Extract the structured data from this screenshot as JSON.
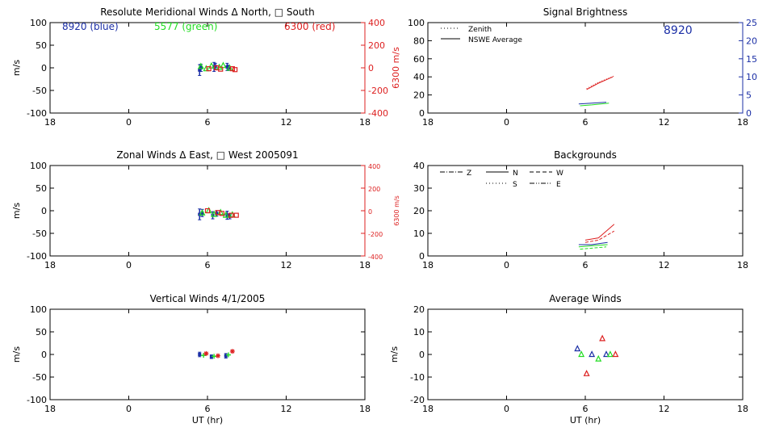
{
  "colors": {
    "blue": "#1b2fa6",
    "green": "#22dd22",
    "red": "#dd2020",
    "black": "#000000"
  },
  "chart_data": [
    {
      "id": "meridional",
      "type": "scatter",
      "title": "Resolute Meridional Winds Δ North, □ South",
      "xlabel": "",
      "ylabel": "m/s",
      "ylabel2": "6300 m/s",
      "xticks": [
        "18",
        "0",
        "6",
        "12",
        "18"
      ],
      "yticks": [
        "100",
        "50",
        "0",
        "-50",
        "-100"
      ],
      "y2ticks": [
        "400",
        "200",
        "0",
        "-200",
        "-400"
      ],
      "ylim": [
        -100,
        100
      ],
      "y2lim": [
        -400,
        400
      ],
      "annotations": [
        {
          "text": "8920 (blue)",
          "color": "blue"
        },
        {
          "text": "5577 (green)",
          "color": "green"
        },
        {
          "text": "6300 (red)",
          "color": "red"
        }
      ],
      "series": [
        {
          "color": "blue",
          "marker": "errorbar",
          "points": [
            [
              5.4,
              -5,
              12
            ],
            [
              5.5,
              0,
              8
            ],
            [
              6.5,
              2,
              10
            ],
            [
              6.6,
              3,
              7
            ],
            [
              7.5,
              2,
              8
            ],
            [
              7.6,
              0,
              6
            ]
          ]
        },
        {
          "color": "green",
          "marker": "triangle",
          "points": [
            [
              5.5,
              3
            ],
            [
              5.9,
              -2
            ],
            [
              6.3,
              4
            ],
            [
              6.9,
              1
            ],
            [
              7.2,
              5
            ],
            [
              7.7,
              -1
            ]
          ]
        },
        {
          "color": "red",
          "marker": "square",
          "points": [
            [
              6.1,
              -2
            ],
            [
              6.7,
              0
            ],
            [
              7.0,
              -3
            ],
            [
              7.9,
              -2
            ],
            [
              8.1,
              -4
            ]
          ]
        }
      ]
    },
    {
      "id": "zonal",
      "type": "scatter",
      "title": "Zonal Winds Δ East, □ West 2005091",
      "xlabel": "",
      "ylabel": "m/s",
      "ylabel2": "6300 m/s",
      "xticks": [
        "18",
        "0",
        "6",
        "12",
        "18"
      ],
      "yticks": [
        "100",
        "50",
        "0",
        "-50",
        "-100"
      ],
      "y2ticks": [
        "400",
        "200",
        "0",
        "-200",
        "-400"
      ],
      "ylim": [
        -100,
        100
      ],
      "y2lim": [
        -400,
        400
      ],
      "series": [
        {
          "color": "blue",
          "marker": "errorbar",
          "points": [
            [
              5.4,
              -8,
              12
            ],
            [
              5.6,
              -5,
              8
            ],
            [
              6.4,
              -10,
              8
            ],
            [
              6.7,
              -6,
              6
            ],
            [
              7.5,
              -10,
              9
            ],
            [
              7.7,
              -12,
              6
            ]
          ]
        },
        {
          "color": "green",
          "marker": "triangle",
          "points": [
            [
              5.6,
              -5
            ],
            [
              6.1,
              0
            ],
            [
              6.5,
              -8
            ],
            [
              7.0,
              -4
            ],
            [
              7.4,
              -10
            ],
            [
              7.9,
              -9
            ]
          ]
        },
        {
          "color": "red",
          "marker": "square",
          "points": [
            [
              6.0,
              0
            ],
            [
              6.8,
              -4
            ],
            [
              7.1,
              -6
            ],
            [
              7.8,
              -10
            ],
            [
              8.2,
              -10
            ]
          ]
        }
      ]
    },
    {
      "id": "vertical",
      "type": "scatter",
      "title": "Vertical Winds 4/1/2005",
      "xlabel": "UT (hr)",
      "ylabel": "m/s",
      "xticks": [
        "18",
        "0",
        "6",
        "12",
        "18"
      ],
      "yticks": [
        "100",
        "50",
        "0",
        "-50",
        "-100"
      ],
      "ylim": [
        -100,
        100
      ],
      "series": [
        {
          "color": "blue",
          "marker": "errorbar",
          "points": [
            [
              5.4,
              0,
              5
            ],
            [
              6.3,
              -5,
              4
            ],
            [
              7.4,
              -3,
              5
            ]
          ]
        },
        {
          "color": "green",
          "marker": "plus",
          "points": [
            [
              5.7,
              -2
            ],
            [
              6.5,
              -4
            ],
            [
              7.6,
              -1
            ]
          ]
        },
        {
          "color": "red",
          "marker": "star",
          "points": [
            [
              5.9,
              2
            ],
            [
              6.8,
              -3
            ],
            [
              7.9,
              7
            ]
          ]
        }
      ]
    },
    {
      "id": "brightness",
      "type": "line",
      "title": "Signal Brightness",
      "xlabel": "",
      "ylabel": "",
      "xticks": [
        "18",
        "0",
        "6",
        "12",
        "18"
      ],
      "yticks": [
        "100",
        "80",
        "60",
        "40",
        "20",
        "0"
      ],
      "y2ticks": [
        "25",
        "20",
        "15",
        "10",
        "5",
        "0"
      ],
      "ylim": [
        0,
        100
      ],
      "y2lim": [
        0,
        25
      ],
      "annotation": "8920",
      "legend": [
        "Zenith",
        "NSWE Average"
      ],
      "series": [
        {
          "color": "red",
          "style": "solid",
          "points": [
            [
              6.1,
              26
            ],
            [
              7.0,
              33
            ],
            [
              8.1,
              40
            ]
          ]
        },
        {
          "color": "red",
          "style": "dotted",
          "points": [
            [
              6.1,
              27
            ],
            [
              7.0,
              34
            ],
            [
              8.2,
              41
            ]
          ]
        },
        {
          "color": "green",
          "style": "solid",
          "points": [
            [
              5.6,
              8
            ],
            [
              6.5,
              9
            ],
            [
              7.8,
              11
            ]
          ]
        },
        {
          "color": "blue",
          "style": "solid",
          "points": [
            [
              5.5,
              10
            ],
            [
              6.5,
              11
            ],
            [
              7.6,
              12
            ]
          ]
        }
      ]
    },
    {
      "id": "backgrounds",
      "type": "line",
      "title": "Backgrounds",
      "xlabel": "",
      "ylabel": "",
      "xticks": [
        "18",
        "0",
        "6",
        "12",
        "18"
      ],
      "yticks": [
        "40",
        "30",
        "20",
        "10",
        "0"
      ],
      "ylim": [
        0,
        40
      ],
      "legend": [
        "Z",
        "N",
        "W",
        "S",
        "E"
      ],
      "series": [
        {
          "color": "red",
          "style": "solid",
          "points": [
            [
              6.0,
              7
            ],
            [
              7.0,
              8
            ],
            [
              8.2,
              14
            ]
          ]
        },
        {
          "color": "red",
          "style": "dashed",
          "points": [
            [
              6.0,
              6
            ],
            [
              7.0,
              7
            ],
            [
              8.2,
              11
            ]
          ]
        },
        {
          "color": "blue",
          "style": "solid",
          "points": [
            [
              5.5,
              5
            ],
            [
              6.5,
              5
            ],
            [
              7.7,
              6
            ]
          ]
        },
        {
          "color": "green",
          "style": "solid",
          "points": [
            [
              5.5,
              4
            ],
            [
              6.5,
              4.5
            ],
            [
              7.7,
              5
            ]
          ]
        },
        {
          "color": "green",
          "style": "dashed",
          "points": [
            [
              5.6,
              3
            ],
            [
              6.6,
              3.5
            ],
            [
              7.6,
              4
            ]
          ]
        }
      ]
    },
    {
      "id": "average",
      "type": "scatter",
      "title": "Average Winds",
      "xlabel": "UT (hr)",
      "ylabel": "m/s",
      "xticks": [
        "18",
        "0",
        "6",
        "12",
        "18"
      ],
      "yticks": [
        "20",
        "10",
        "0",
        "-10",
        "-20"
      ],
      "ylim": [
        -20,
        20
      ],
      "series": [
        {
          "color": "blue",
          "marker": "triangle",
          "points": [
            [
              5.4,
              2.5
            ],
            [
              6.5,
              0
            ],
            [
              7.6,
              0
            ]
          ]
        },
        {
          "color": "green",
          "marker": "triangle",
          "points": [
            [
              5.7,
              0
            ],
            [
              7.0,
              -2
            ],
            [
              7.9,
              0
            ]
          ]
        },
        {
          "color": "red",
          "marker": "triangle",
          "points": [
            [
              6.1,
              -8.5
            ],
            [
              7.3,
              7
            ],
            [
              8.3,
              0
            ]
          ]
        }
      ]
    }
  ]
}
